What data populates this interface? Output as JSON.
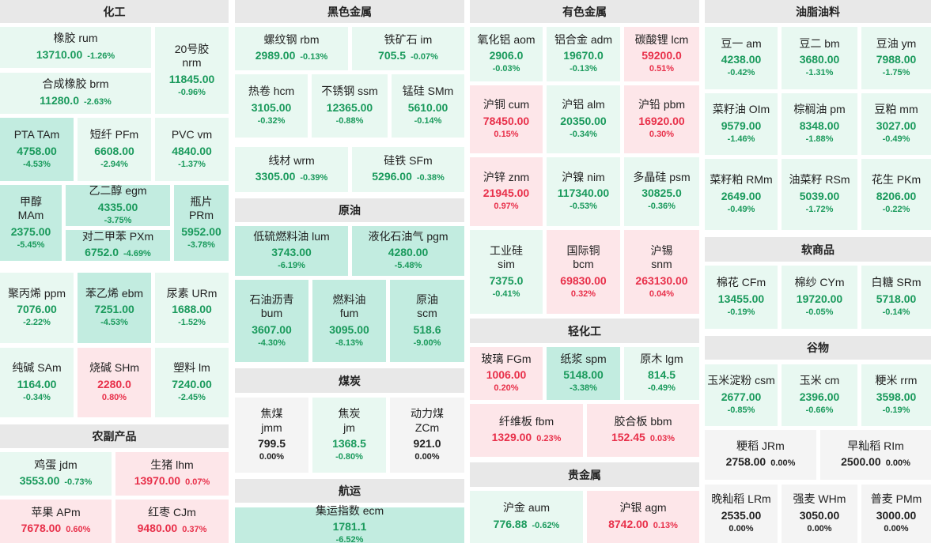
{
  "sections": [
    {
      "name": "化工",
      "tiles": [
        {
          "name": "橡胶  rum",
          "price": "13710.00",
          "change": "-1.26%",
          "trend": "dn1"
        },
        {
          "name": "20号胶\nnrm",
          "price": "11845.00",
          "change": "-0.96%",
          "trend": "dn1"
        },
        {
          "name": "合成橡胶  brm",
          "price": "11280.0",
          "change": "-2.63%",
          "trend": "dn1"
        },
        {
          "name": "PTA  TAm",
          "price": "4758.00",
          "change": "-4.53%",
          "trend": "dn2"
        },
        {
          "name": "短纤  PFm",
          "price": "6608.00",
          "change": "-2.94%",
          "trend": "dn1"
        },
        {
          "name": "PVC  vm",
          "price": "4840.00",
          "change": "-1.37%",
          "trend": "dn1"
        },
        {
          "name": "甲醇\nMAm",
          "price": "2375.00",
          "change": "-5.45%",
          "trend": "dn2"
        },
        {
          "name": "乙二醇  egm",
          "price": "4335.00",
          "change": "-3.75%",
          "trend": "dn2"
        },
        {
          "name": "瓶片\nPRm",
          "price": "5952.00",
          "change": "-3.78%",
          "trend": "dn2"
        },
        {
          "name": "对二甲苯  PXm",
          "price": "6752.0",
          "change": "-4.69%",
          "trend": "dn2"
        },
        {
          "name": "聚丙烯  ppm",
          "price": "7076.00",
          "change": "-2.22%",
          "trend": "dn1"
        },
        {
          "name": "苯乙烯  ebm",
          "price": "7251.00",
          "change": "-4.53%",
          "trend": "dn2"
        },
        {
          "name": "尿素  URm",
          "price": "1688.00",
          "change": "-1.52%",
          "trend": "dn1"
        },
        {
          "name": "纯碱  SAm",
          "price": "1164.00",
          "change": "-0.34%",
          "trend": "dn1"
        },
        {
          "name": "烧碱  SHm",
          "price": "2280.0",
          "change": "0.80%",
          "trend": "up"
        },
        {
          "name": "塑料  lm",
          "price": "7240.00",
          "change": "-2.45%",
          "trend": "dn1"
        }
      ]
    },
    {
      "name": "农副产品",
      "tiles": [
        {
          "name": "鸡蛋  jdm",
          "price": "3553.00",
          "change": "-0.73%",
          "trend": "dn1"
        },
        {
          "name": "生猪  lhm",
          "price": "13970.00",
          "change": "0.07%",
          "trend": "up"
        },
        {
          "name": "苹果  APm",
          "price": "7678.00",
          "change": "0.60%",
          "trend": "up"
        },
        {
          "name": "红枣  CJm",
          "price": "9480.00",
          "change": "0.37%",
          "trend": "up"
        }
      ]
    },
    {
      "name": "黑色金属",
      "tiles": [
        {
          "name": "螺纹钢  rbm",
          "price": "2989.00",
          "change": "-0.13%",
          "trend": "dn1"
        },
        {
          "name": "铁矿石  im",
          "price": "705.5",
          "change": "-0.07%",
          "trend": "dn1"
        },
        {
          "name": "热卷  hcm",
          "price": "3105.00",
          "change": "-0.32%",
          "trend": "dn1"
        },
        {
          "name": "不锈钢  ssm",
          "price": "12365.00",
          "change": "-0.88%",
          "trend": "dn1"
        },
        {
          "name": "锰硅  SMm",
          "price": "5610.00",
          "change": "-0.14%",
          "trend": "dn1"
        },
        {
          "name": "线材  wrm",
          "price": "3305.00",
          "change": "-0.39%",
          "trend": "dn1"
        },
        {
          "name": "硅铁  SFm",
          "price": "5296.00",
          "change": "-0.38%",
          "trend": "dn1"
        }
      ]
    },
    {
      "name": "原油",
      "tiles": [
        {
          "name": "低硫燃料油  lum",
          "price": "3743.00",
          "change": "-6.19%",
          "trend": "dn2"
        },
        {
          "name": "液化石油气  pgm",
          "price": "4280.00",
          "change": "-5.48%",
          "trend": "dn2"
        },
        {
          "name": "石油沥青\nbum",
          "price": "3607.00",
          "change": "-4.30%",
          "trend": "dn2"
        },
        {
          "name": "燃料油\nfum",
          "price": "3095.00",
          "change": "-8.13%",
          "trend": "dn2"
        },
        {
          "name": "原油\nscm",
          "price": "518.6",
          "change": "-9.00%",
          "trend": "dn2"
        }
      ]
    },
    {
      "name": "煤炭",
      "tiles": [
        {
          "name": "焦煤\njmm",
          "price": "799.5",
          "change": "0.00%",
          "trend": "flat"
        },
        {
          "name": "焦炭\njm",
          "price": "1368.5",
          "change": "-0.80%",
          "trend": "dn1"
        },
        {
          "name": "动力煤\nZCm",
          "price": "921.0",
          "change": "0.00%",
          "trend": "flat"
        }
      ]
    },
    {
      "name": "航运",
      "tiles": [
        {
          "name": "集运指数  ecm",
          "price": "1781.1",
          "change": "-6.52%",
          "trend": "dn2"
        }
      ]
    },
    {
      "name": "有色金属",
      "tiles": [
        {
          "name": "氧化铝  aom",
          "price": "2906.0",
          "change": "-0.03%",
          "trend": "dn1"
        },
        {
          "name": "铝合金  adm",
          "price": "19670.0",
          "change": "-0.13%",
          "trend": "dn1"
        },
        {
          "name": "碳酸锂  lcm",
          "price": "59200.0",
          "change": "0.51%",
          "trend": "up"
        },
        {
          "name": "沪铜  cum",
          "price": "78450.00",
          "change": "0.15%",
          "trend": "up"
        },
        {
          "name": "沪铝  alm",
          "price": "20350.00",
          "change": "-0.34%",
          "trend": "dn1"
        },
        {
          "name": "沪铅  pbm",
          "price": "16920.00",
          "change": "0.30%",
          "trend": "up"
        },
        {
          "name": "沪锌  znm",
          "price": "21945.00",
          "change": "0.97%",
          "trend": "up"
        },
        {
          "name": "沪镍  nim",
          "price": "117340.00",
          "change": "-0.53%",
          "trend": "dn1"
        },
        {
          "name": "多晶硅  psm",
          "price": "30825.0",
          "change": "-0.36%",
          "trend": "dn1"
        },
        {
          "name": "工业硅\nsim",
          "price": "7375.0",
          "change": "-0.41%",
          "trend": "dn1"
        },
        {
          "name": "国际铜\nbcm",
          "price": "69830.00",
          "change": "0.32%",
          "trend": "up"
        },
        {
          "name": "沪锡\nsnm",
          "price": "263130.00",
          "change": "0.04%",
          "trend": "up"
        }
      ]
    },
    {
      "name": "轻化工",
      "tiles": [
        {
          "name": "玻璃  FGm",
          "price": "1006.00",
          "change": "0.20%",
          "trend": "up"
        },
        {
          "name": "纸浆  spm",
          "price": "5148.00",
          "change": "-3.38%",
          "trend": "dn2"
        },
        {
          "name": "原木  lgm",
          "price": "814.5",
          "change": "-0.49%",
          "trend": "dn1"
        },
        {
          "name": "纤维板  fbm",
          "price": "1329.00",
          "change": "0.23%",
          "trend": "up"
        },
        {
          "name": "胶合板  bbm",
          "price": "152.45",
          "change": "0.03%",
          "trend": "up"
        }
      ]
    },
    {
      "name": "贵金属",
      "tiles": [
        {
          "name": "沪金  aum",
          "price": "776.88",
          "change": "-0.62%",
          "trend": "dn1"
        },
        {
          "name": "沪银  agm",
          "price": "8742.00",
          "change": "0.13%",
          "trend": "up"
        }
      ]
    },
    {
      "name": "油脂油料",
      "tiles": [
        {
          "name": "豆一  am",
          "price": "4238.00",
          "change": "-0.42%",
          "trend": "dn1"
        },
        {
          "name": "豆二  bm",
          "price": "3680.00",
          "change": "-1.31%",
          "trend": "dn1"
        },
        {
          "name": "豆油  ym",
          "price": "7988.00",
          "change": "-1.75%",
          "trend": "dn1"
        },
        {
          "name": "菜籽油  OIm",
          "price": "9579.00",
          "change": "-1.46%",
          "trend": "dn1"
        },
        {
          "name": "棕榈油  pm",
          "price": "8348.00",
          "change": "-1.88%",
          "trend": "dn1"
        },
        {
          "name": "豆粕  mm",
          "price": "3027.00",
          "change": "-0.49%",
          "trend": "dn1"
        },
        {
          "name": "菜籽粕  RMm",
          "price": "2649.00",
          "change": "-0.49%",
          "trend": "dn1"
        },
        {
          "name": "油菜籽  RSm",
          "price": "5039.00",
          "change": "-1.72%",
          "trend": "dn1"
        },
        {
          "name": "花生  PKm",
          "price": "8206.00",
          "change": "-0.22%",
          "trend": "dn1"
        }
      ]
    },
    {
      "name": "软商品",
      "tiles": [
        {
          "name": "棉花  CFm",
          "price": "13455.00",
          "change": "-0.19%",
          "trend": "dn1"
        },
        {
          "name": "棉纱  CYm",
          "price": "19720.00",
          "change": "-0.05%",
          "trend": "dn1"
        },
        {
          "name": "白糖  SRm",
          "price": "5718.00",
          "change": "-0.14%",
          "trend": "dn1"
        }
      ]
    },
    {
      "name": "谷物",
      "tiles": [
        {
          "name": "玉米淀粉  csm",
          "price": "2677.00",
          "change": "-0.85%",
          "trend": "dn1"
        },
        {
          "name": "玉米  cm",
          "price": "2396.00",
          "change": "-0.66%",
          "trend": "dn1"
        },
        {
          "name": "粳米  rrm",
          "price": "3598.00",
          "change": "-0.19%",
          "trend": "dn1"
        },
        {
          "name": "粳稻  JRm",
          "price": "2758.00",
          "change": "0.00%",
          "trend": "flat"
        },
        {
          "name": "早籼稻  RIm",
          "price": "2500.00",
          "change": "0.00%",
          "trend": "flat"
        },
        {
          "name": "晚籼稻  LRm",
          "price": "2535.00",
          "change": "0.00%",
          "trend": "flat"
        },
        {
          "name": "强麦  WHm",
          "price": "3050.00",
          "change": "0.00%",
          "trend": "flat"
        },
        {
          "name": "普麦  PMm",
          "price": "3000.00",
          "change": "0.00%",
          "trend": "flat"
        }
      ]
    }
  ]
}
